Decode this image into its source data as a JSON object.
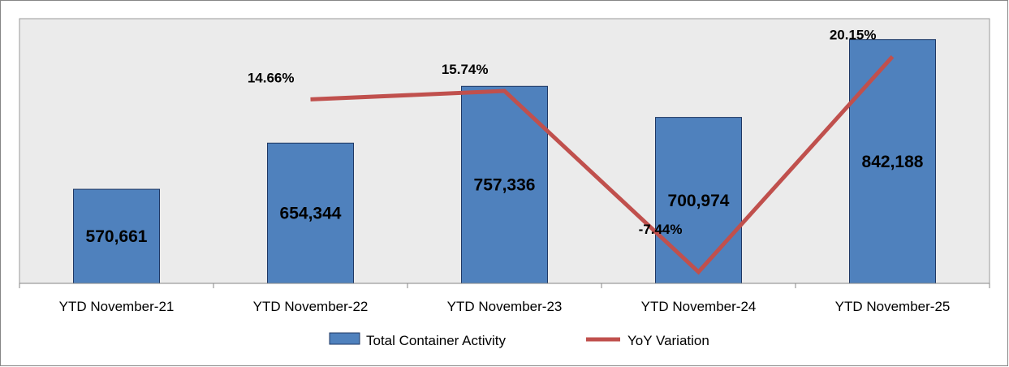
{
  "chart_data": {
    "type": "bar",
    "title": "",
    "xlabel": "",
    "ylabel": "",
    "categories": [
      "YTD November-21",
      "YTD November-22",
      "YTD November-23",
      "YTD November-24",
      "YTD November-25"
    ],
    "series": [
      {
        "name": "Total Container Activity",
        "kind": "bar",
        "axis": "primary",
        "values": [
          570661,
          654344,
          757336,
          700974,
          842188
        ],
        "labels": [
          "570,661",
          "654,344",
          "757,336",
          "700,974",
          "842,188"
        ]
      },
      {
        "name": "YoY Variation",
        "kind": "line",
        "axis": "secondary",
        "values": [
          null,
          14.66,
          15.74,
          -7.44,
          20.15
        ],
        "labels": [
          "",
          "14.66%",
          "15.74%",
          "-7.44%",
          "20.15%"
        ]
      }
    ],
    "ylim": [
      400000,
      880000
    ],
    "y2lim": [
      -8.9,
      25.0
    ],
    "grid": false,
    "legend_position": "bottom",
    "colors": {
      "bar_fill": "#4f81bd",
      "bar_stroke": "#1f3864",
      "line": "#c0504d",
      "plot_background": "#ebebeb",
      "axis": "#868686"
    }
  }
}
